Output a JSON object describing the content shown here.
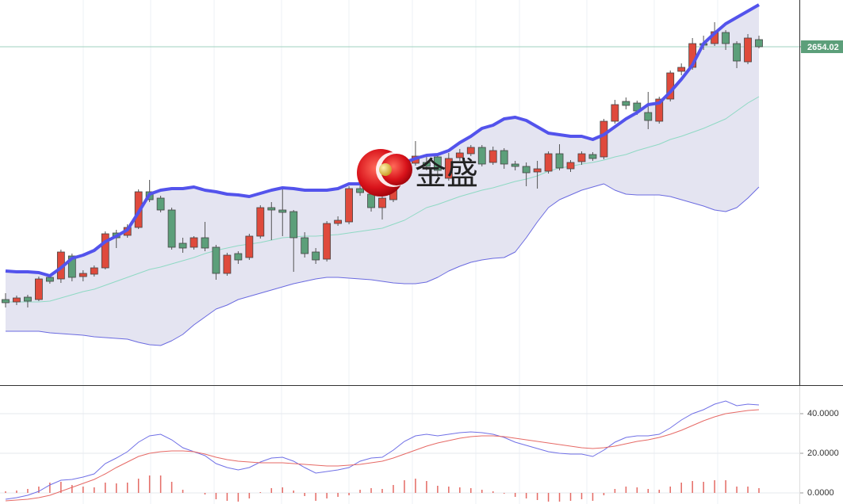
{
  "chart_data": [
    {
      "type": "candlestick",
      "watermark": "金盛",
      "last_price": 2654.02,
      "up_color": "#df4a3c",
      "down_color": "#5c9f7a",
      "ylim": [
        2228,
        2713
      ],
      "candles": [
        {
          "open": 2335,
          "high": 2343,
          "low": 2325,
          "close": 2331
        },
        {
          "open": 2332,
          "high": 2340,
          "low": 2328,
          "close": 2337
        },
        {
          "open": 2338,
          "high": 2341,
          "low": 2325,
          "close": 2333
        },
        {
          "open": 2335,
          "high": 2364,
          "low": 2333,
          "close": 2361
        },
        {
          "open": 2363,
          "high": 2366,
          "low": 2355,
          "close": 2358
        },
        {
          "open": 2361,
          "high": 2398,
          "low": 2356,
          "close": 2395
        },
        {
          "open": 2390,
          "high": 2393,
          "low": 2358,
          "close": 2363
        },
        {
          "open": 2364,
          "high": 2372,
          "low": 2358,
          "close": 2368
        },
        {
          "open": 2367,
          "high": 2378,
          "low": 2364,
          "close": 2375
        },
        {
          "open": 2375,
          "high": 2421,
          "low": 2373,
          "close": 2418
        },
        {
          "open": 2419,
          "high": 2423,
          "low": 2400,
          "close": 2413
        },
        {
          "open": 2416,
          "high": 2430,
          "low": 2413,
          "close": 2426
        },
        {
          "open": 2426,
          "high": 2474,
          "low": 2424,
          "close": 2471
        },
        {
          "open": 2471,
          "high": 2486,
          "low": 2458,
          "close": 2461
        },
        {
          "open": 2463,
          "high": 2466,
          "low": 2445,
          "close": 2448
        },
        {
          "open": 2448,
          "high": 2451,
          "low": 2398,
          "close": 2401
        },
        {
          "open": 2406,
          "high": 2413,
          "low": 2394,
          "close": 2400
        },
        {
          "open": 2401,
          "high": 2415,
          "low": 2398,
          "close": 2413
        },
        {
          "open": 2413,
          "high": 2433,
          "low": 2396,
          "close": 2400
        },
        {
          "open": 2401,
          "high": 2404,
          "low": 2360,
          "close": 2368
        },
        {
          "open": 2368,
          "high": 2394,
          "low": 2365,
          "close": 2391
        },
        {
          "open": 2393,
          "high": 2396,
          "low": 2380,
          "close": 2385
        },
        {
          "open": 2388,
          "high": 2418,
          "low": 2385,
          "close": 2415
        },
        {
          "open": 2415,
          "high": 2454,
          "low": 2412,
          "close": 2451
        },
        {
          "open": 2451,
          "high": 2458,
          "low": 2410,
          "close": 2448
        },
        {
          "open": 2448,
          "high": 2475,
          "low": 2415,
          "close": 2445
        },
        {
          "open": 2446,
          "high": 2448,
          "low": 2370,
          "close": 2413
        },
        {
          "open": 2413,
          "high": 2420,
          "low": 2388,
          "close": 2393
        },
        {
          "open": 2395,
          "high": 2400,
          "low": 2380,
          "close": 2385
        },
        {
          "open": 2386,
          "high": 2434,
          "low": 2383,
          "close": 2431
        },
        {
          "open": 2431,
          "high": 2440,
          "low": 2428,
          "close": 2435
        },
        {
          "open": 2433,
          "high": 2478,
          "low": 2430,
          "close": 2475
        },
        {
          "open": 2475,
          "high": 2490,
          "low": 2466,
          "close": 2470
        },
        {
          "open": 2468,
          "high": 2471,
          "low": 2446,
          "close": 2451
        },
        {
          "open": 2451,
          "high": 2466,
          "low": 2436,
          "close": 2463
        },
        {
          "open": 2461,
          "high": 2511,
          "low": 2458,
          "close": 2508
        },
        {
          "open": 2510,
          "high": 2513,
          "low": 2495,
          "close": 2507
        },
        {
          "open": 2507,
          "high": 2535,
          "low": 2504,
          "close": 2516
        },
        {
          "open": 2508,
          "high": 2515,
          "low": 2498,
          "close": 2503
        },
        {
          "open": 2515,
          "high": 2518,
          "low": 2490,
          "close": 2498
        },
        {
          "open": 2488,
          "high": 2520,
          "low": 2485,
          "close": 2513
        },
        {
          "open": 2514,
          "high": 2525,
          "low": 2510,
          "close": 2520
        },
        {
          "open": 2519,
          "high": 2530,
          "low": 2516,
          "close": 2527
        },
        {
          "open": 2527,
          "high": 2530,
          "low": 2503,
          "close": 2506
        },
        {
          "open": 2508,
          "high": 2528,
          "low": 2505,
          "close": 2523
        },
        {
          "open": 2523,
          "high": 2526,
          "low": 2500,
          "close": 2506
        },
        {
          "open": 2506,
          "high": 2510,
          "low": 2498,
          "close": 2503
        },
        {
          "open": 2503,
          "high": 2508,
          "low": 2478,
          "close": 2495
        },
        {
          "open": 2496,
          "high": 2510,
          "low": 2475,
          "close": 2500
        },
        {
          "open": 2497,
          "high": 2522,
          "low": 2494,
          "close": 2519
        },
        {
          "open": 2519,
          "high": 2531,
          "low": 2498,
          "close": 2501
        },
        {
          "open": 2500,
          "high": 2511,
          "low": 2496,
          "close": 2508
        },
        {
          "open": 2509,
          "high": 2522,
          "low": 2505,
          "close": 2519
        },
        {
          "open": 2518,
          "high": 2521,
          "low": 2510,
          "close": 2513
        },
        {
          "open": 2515,
          "high": 2563,
          "low": 2512,
          "close": 2560
        },
        {
          "open": 2560,
          "high": 2587,
          "low": 2557,
          "close": 2581
        },
        {
          "open": 2585,
          "high": 2590,
          "low": 2575,
          "close": 2580
        },
        {
          "open": 2583,
          "high": 2586,
          "low": 2568,
          "close": 2573
        },
        {
          "open": 2571,
          "high": 2597,
          "low": 2550,
          "close": 2561
        },
        {
          "open": 2560,
          "high": 2591,
          "low": 2557,
          "close": 2588
        },
        {
          "open": 2588,
          "high": 2624,
          "low": 2585,
          "close": 2621
        },
        {
          "open": 2623,
          "high": 2633,
          "low": 2618,
          "close": 2628
        },
        {
          "open": 2628,
          "high": 2665,
          "low": 2625,
          "close": 2658
        },
        {
          "open": 2658,
          "high": 2668,
          "low": 2650,
          "close": 2656
        },
        {
          "open": 2658,
          "high": 2685,
          "low": 2655,
          "close": 2673
        },
        {
          "open": 2672,
          "high": 2675,
          "low": 2650,
          "close": 2658
        },
        {
          "open": 2658,
          "high": 2661,
          "low": 2627,
          "close": 2636
        },
        {
          "open": 2635,
          "high": 2670,
          "low": 2632,
          "close": 2665
        },
        {
          "open": 2663,
          "high": 2668,
          "low": 2652,
          "close": 2654.02
        }
      ],
      "bands": {
        "upper": {
          "color": "#5353ec",
          "values": [
            2371,
            2370,
            2370,
            2369,
            2365,
            2375,
            2387,
            2391,
            2397,
            2408,
            2415,
            2423,
            2445,
            2468,
            2473,
            2475,
            2475,
            2477,
            2473,
            2471,
            2468,
            2467,
            2465,
            2469,
            2473,
            2476,
            2475,
            2473,
            2473,
            2473,
            2475,
            2481,
            2481,
            2475,
            2475,
            2491,
            2508,
            2513,
            2517,
            2518,
            2523,
            2533,
            2541,
            2551,
            2555,
            2563,
            2565,
            2561,
            2553,
            2545,
            2543,
            2541,
            2541,
            2537,
            2543,
            2553,
            2563,
            2571,
            2581,
            2583,
            2597,
            2613,
            2631,
            2658,
            2671,
            2683,
            2691,
            2699,
            2707
          ]
        },
        "middle": {
          "color": "#8fd9c4",
          "values": [
            2332,
            2332,
            2332,
            2332,
            2333,
            2337,
            2341,
            2345,
            2348,
            2353,
            2358,
            2363,
            2368,
            2373,
            2376,
            2380,
            2384,
            2388,
            2393,
            2397,
            2400,
            2403,
            2405,
            2407,
            2410,
            2413,
            2414,
            2415,
            2415,
            2416,
            2417,
            2419,
            2421,
            2423,
            2425,
            2430,
            2435,
            2443,
            2451,
            2455,
            2460,
            2465,
            2469,
            2473,
            2476,
            2480,
            2484,
            2487,
            2491,
            2497,
            2501,
            2503,
            2506,
            2508,
            2511,
            2515,
            2518,
            2523,
            2527,
            2531,
            2537,
            2541,
            2546,
            2551,
            2557,
            2563,
            2573,
            2583,
            2591
          ]
        },
        "lower": {
          "color": "#6a6ae0",
          "values": [
            2295,
            2295,
            2295,
            2295,
            2293,
            2292,
            2291,
            2290,
            2288,
            2287,
            2286,
            2285,
            2281,
            2278,
            2277,
            2283,
            2291,
            2303,
            2313,
            2323,
            2328,
            2335,
            2339,
            2343,
            2347,
            2351,
            2355,
            2358,
            2361,
            2363,
            2363,
            2362,
            2361,
            2360,
            2358,
            2356,
            2355,
            2355,
            2357,
            2363,
            2371,
            2377,
            2382,
            2385,
            2387,
            2388,
            2395,
            2413,
            2433,
            2451,
            2461,
            2467,
            2473,
            2477,
            2481,
            2473,
            2468,
            2467,
            2467,
            2467,
            2465,
            2461,
            2457,
            2453,
            2448,
            2446,
            2451,
            2463,
            2477
          ]
        },
        "fill": "#e4e4f1"
      }
    },
    {
      "type": "line",
      "ylim": [
        -5.6,
        53.6
      ],
      "yticks": [
        {
          "value": 0,
          "label": "0.0000"
        },
        {
          "value": 20,
          "label": "20.0000"
        },
        {
          "value": 40,
          "label": "40.0000"
        }
      ],
      "grid": true,
      "series": [
        {
          "color": "#7070e6",
          "values": [
            -3.2,
            -2.4,
            -1.2,
            0.8,
            4,
            6.4,
            6.8,
            8,
            9.6,
            14.8,
            17.6,
            20.8,
            25.6,
            28.8,
            29.6,
            26.8,
            22.8,
            20.8,
            18.8,
            14.8,
            12.8,
            11.6,
            12.8,
            15.6,
            17.6,
            18,
            16,
            12.8,
            10,
            10.8,
            11.6,
            12.8,
            16,
            17.6,
            18,
            21.6,
            26,
            28.8,
            29.6,
            28.8,
            29.6,
            30.4,
            30.8,
            30.4,
            29.6,
            28,
            25.6,
            24,
            22.4,
            20.8,
            20,
            19.6,
            19.6,
            18.4,
            21.6,
            25.6,
            28,
            28.8,
            28.8,
            29.6,
            32.8,
            36.8,
            40,
            42,
            44.8,
            46.4,
            44,
            44.8,
            44.4
          ]
        },
        {
          "color": "#e66a66",
          "values": [
            -4,
            -3.6,
            -3.2,
            -2.4,
            -1.2,
            0.8,
            2.8,
            4.8,
            6.8,
            9.6,
            12.8,
            15.6,
            18.4,
            20,
            20.8,
            21.2,
            21.2,
            20.8,
            19.6,
            18,
            16.8,
            16,
            15.6,
            15.2,
            15.2,
            15.2,
            14.8,
            14.4,
            14,
            13.6,
            13.6,
            14,
            14.4,
            15.2,
            16,
            17.6,
            19.6,
            21.6,
            23.6,
            25.2,
            26.4,
            27.6,
            28.4,
            28.8,
            28.8,
            28.4,
            27.6,
            26.8,
            26,
            25.2,
            24.4,
            23.6,
            22.8,
            22.4,
            22.8,
            23.6,
            24.8,
            26,
            26.8,
            28,
            29.6,
            31.6,
            34,
            36.4,
            38.4,
            40,
            40.8,
            41.6,
            42
          ]
        }
      ],
      "bars": {
        "color": "#e46a64",
        "values": [
          0.8,
          1.2,
          2,
          3.2,
          5.2,
          5.6,
          4,
          3.2,
          2.8,
          5.2,
          4.8,
          5.2,
          7.2,
          8.8,
          8.8,
          5.6,
          1.6,
          0,
          -0.8,
          -3.2,
          -4,
          -4.4,
          -2.8,
          0.4,
          2.4,
          2.8,
          1.2,
          -1.6,
          -4,
          -2.8,
          -2,
          -1.2,
          1.6,
          2.4,
          2,
          4,
          6.4,
          7.2,
          6,
          3.6,
          3.2,
          2.8,
          2.4,
          1.6,
          0.8,
          -0.4,
          -2,
          -2.8,
          -3.6,
          -4.4,
          -4.4,
          -4,
          -3.2,
          -4,
          -1.2,
          2,
          3.2,
          2.8,
          2,
          1.6,
          3.2,
          5.2,
          6,
          5.6,
          6.4,
          6.4,
          3.2,
          3.2,
          2.4
        ]
      }
    }
  ]
}
